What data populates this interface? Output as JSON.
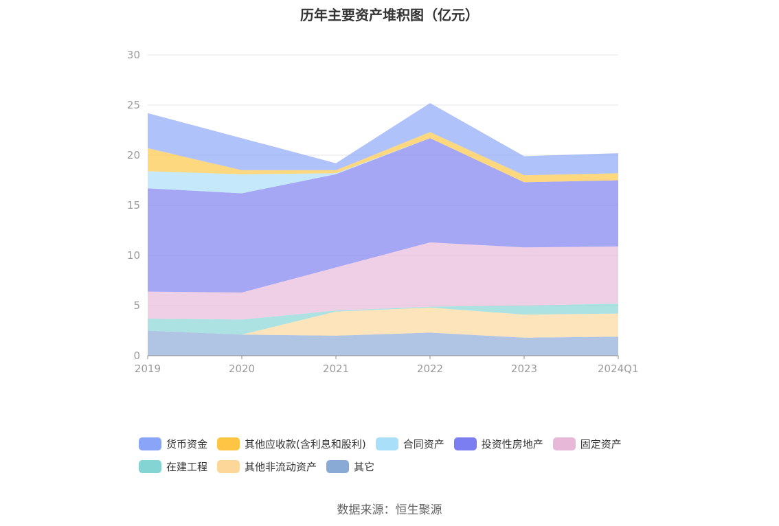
{
  "chart_data": {
    "type": "area",
    "stacked": true,
    "title": "历年主要资产堆积图（亿元）",
    "categories": [
      "2019",
      "2020",
      "2021",
      "2022",
      "2023",
      "2024Q1"
    ],
    "ylim": [
      0,
      30
    ],
    "yticks": [
      "0",
      "5",
      "10",
      "15",
      "20",
      "25",
      "30"
    ],
    "grid": true,
    "legend_position": "bottom",
    "series": [
      {
        "name": "其它",
        "color": "#8aaad6",
        "values": [
          2.5,
          2.1,
          2.0,
          2.3,
          1.8,
          1.9
        ]
      },
      {
        "name": "其他非流动资产",
        "color": "#fdd79a",
        "values": [
          0.0,
          0.0,
          2.4,
          2.5,
          2.3,
          2.3
        ]
      },
      {
        "name": "在建工程",
        "color": "#84d4d4",
        "values": [
          1.2,
          1.5,
          0.1,
          0.1,
          0.9,
          1.0
        ]
      },
      {
        "name": "固定资产",
        "color": "#e8b8d8",
        "values": [
          2.7,
          2.7,
          4.3,
          6.4,
          5.8,
          5.7
        ]
      },
      {
        "name": "投资性房地产",
        "color": "#7b7ef0",
        "values": [
          10.3,
          9.9,
          9.3,
          10.4,
          6.5,
          6.6
        ]
      },
      {
        "name": "合同资产",
        "color": "#a9dff8",
        "values": [
          1.7,
          1.9,
          0.1,
          0.0,
          0.0,
          0.0
        ]
      },
      {
        "name": "其他应收款(含利息和股利)",
        "color": "#fdc543",
        "values": [
          2.3,
          0.4,
          0.3,
          0.6,
          0.7,
          0.7
        ]
      },
      {
        "name": "货币资金",
        "color": "#8aa5f7",
        "values": [
          3.5,
          3.2,
          0.7,
          2.9,
          1.9,
          2.0
        ]
      }
    ]
  },
  "legend": {
    "row1": [
      {
        "label": "货币资金",
        "color": "#8aa5f7"
      },
      {
        "label": "其他应收款(含利息和股利)",
        "color": "#fdc543"
      },
      {
        "label": "合同资产",
        "color": "#a9dff8"
      },
      {
        "label": "投资性房地产",
        "color": "#7b7ef0"
      },
      {
        "label": "固定资产",
        "color": "#e8b8d8"
      }
    ],
    "row2": [
      {
        "label": "在建工程",
        "color": "#84d4d4"
      },
      {
        "label": "其他非流动资产",
        "color": "#fdd79a"
      },
      {
        "label": "其它",
        "color": "#8aaad6"
      }
    ]
  },
  "source": "数据来源：恒生聚源"
}
